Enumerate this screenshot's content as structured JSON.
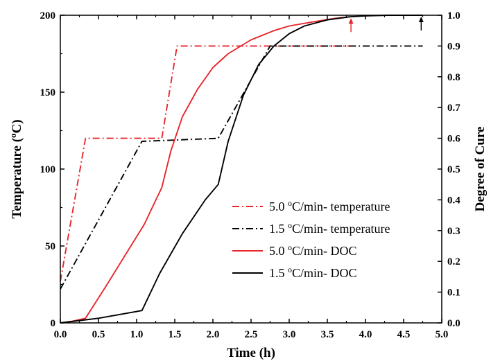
{
  "chart_data": {
    "type": "line",
    "xlabel": "Time (h)",
    "ylabel_left": "Temperature (°C)",
    "ylabel_right": "Degree of Cure",
    "xlim": [
      0.0,
      5.0
    ],
    "ylim_left": [
      0,
      200
    ],
    "ylim_right": [
      0.0,
      1.0
    ],
    "x_ticks": [
      "0.0",
      "0.5",
      "1.0",
      "1.5",
      "2.0",
      "2.5",
      "3.0",
      "3.5",
      "4.0",
      "4.5",
      "5.0"
    ],
    "y_left_ticks": [
      "0",
      "50",
      "100",
      "150",
      "200"
    ],
    "y_right_ticks": [
      "0.0",
      "0.1",
      "0.2",
      "0.3",
      "0.4",
      "0.5",
      "0.6",
      "0.7",
      "0.8",
      "0.9",
      "1.0"
    ],
    "grid": false,
    "legend_position": "center-right",
    "series": [
      {
        "name": "5.0 °C/min- temperature",
        "axis": "left",
        "color": "#e8262b",
        "style": "dash-dot",
        "x": [
          0.0,
          0.33,
          1.33,
          1.53,
          3.8
        ],
        "y": [
          27,
          120,
          120,
          180,
          180
        ]
      },
      {
        "name": "1.5 °C/min- temperature",
        "axis": "left",
        "color": "#000000",
        "style": "dash-dot",
        "x": [
          0.0,
          1.07,
          2.07,
          2.75,
          4.75
        ],
        "y": [
          22,
          118,
          120,
          180,
          180
        ]
      },
      {
        "name": "5.0 °C/min- DOC",
        "axis": "right",
        "color": "#e8262b",
        "style": "solid",
        "x": [
          0.0,
          0.15,
          0.33,
          0.6,
          0.9,
          1.1,
          1.33,
          1.45,
          1.6,
          1.8,
          2.0,
          2.2,
          2.5,
          2.8,
          3.0,
          3.3,
          3.6,
          3.8
        ],
        "y": [
          0.0,
          0.005,
          0.015,
          0.12,
          0.24,
          0.32,
          0.44,
          0.56,
          0.67,
          0.76,
          0.83,
          0.875,
          0.92,
          0.95,
          0.965,
          0.978,
          0.99,
          0.995
        ]
      },
      {
        "name": "1.5 °C/min- DOC",
        "axis": "right",
        "color": "#000000",
        "style": "solid",
        "x": [
          0.0,
          0.5,
          1.07,
          1.3,
          1.6,
          1.9,
          2.07,
          2.2,
          2.4,
          2.6,
          2.8,
          3.0,
          3.2,
          3.5,
          3.8,
          4.0,
          4.3,
          4.75
        ],
        "y": [
          0.0,
          0.015,
          0.04,
          0.16,
          0.29,
          0.4,
          0.45,
          0.59,
          0.74,
          0.84,
          0.9,
          0.94,
          0.965,
          0.985,
          0.995,
          0.998,
          1.0,
          1.0
        ]
      }
    ],
    "annotations": [
      {
        "type": "arrow",
        "color": "#e8262b",
        "x": 3.81,
        "y_right": 0.995
      },
      {
        "type": "arrow",
        "color": "#000000",
        "x": 4.73,
        "y_right": 1.0
      }
    ]
  }
}
